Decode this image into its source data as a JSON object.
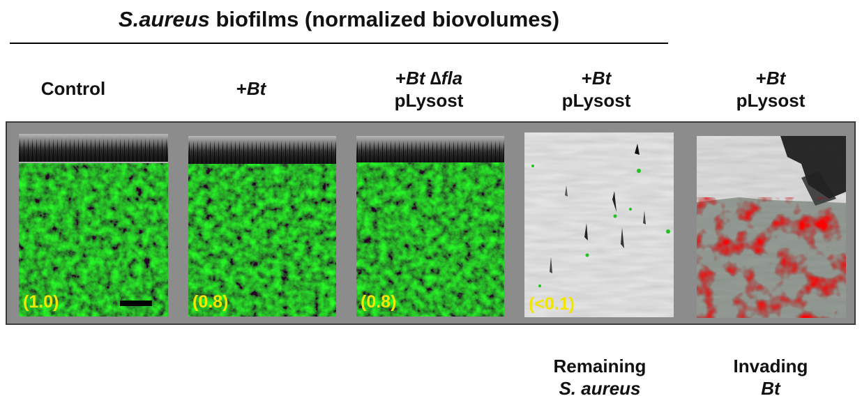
{
  "figure": {
    "title_italic": "S.aureus",
    "title_rest": " biofilms (normalized biovolumes)"
  },
  "columns": [
    {
      "label_lines": [
        "Control"
      ],
      "value": "(1.0)"
    },
    {
      "label_lines": [
        "+Bt"
      ],
      "value": "(0.8)"
    },
    {
      "label_lines": [
        "+Bt ∆fla",
        "pLysost"
      ],
      "value": "(0.8)"
    },
    {
      "label_lines": [
        "+Bt",
        "pLysost"
      ],
      "value": "(<0.1)",
      "caption_lines": [
        "Remaining",
        "S. aureus"
      ]
    },
    {
      "label_lines": [
        "+Bt",
        "pLysost"
      ],
      "caption_lines": [
        "Invading",
        "Bt"
      ]
    }
  ],
  "colors": {
    "biofilm_green": "#1fc21f",
    "bt_red": "#e01818",
    "value_yellow": "#f2e600",
    "panel_gray": "#8c8c8c"
  }
}
